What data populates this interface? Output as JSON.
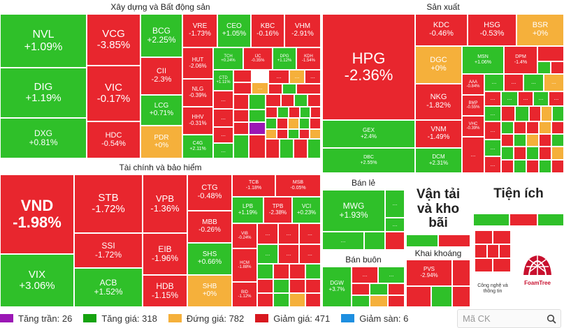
{
  "sections": {
    "xay_dung": "Xây dựng và Bất động sản",
    "san_xuat": "Sản xuất",
    "tai_chinh": "Tài chính và bảo hiểm",
    "ban_le": "Bán lẻ",
    "van_tai": "Vận tải và kho bãi",
    "tien_ich": "Tiện ích",
    "ban_buon": "Bán buôn",
    "khai_khoang": "Khai khoáng",
    "cong_nghe": "Công nghệ và thông tin"
  },
  "more": "...",
  "stocks": {
    "NVL": {
      "t": "NVL",
      "v": "+1.09%"
    },
    "DIG": {
      "t": "DIG",
      "v": "+1.19%"
    },
    "DXG": {
      "t": "DXG",
      "v": "+0.81%"
    },
    "VCG": {
      "t": "VCG",
      "v": "-3.85%"
    },
    "VIC": {
      "t": "VIC",
      "v": "-0.17%"
    },
    "HDC": {
      "t": "HDC",
      "v": "-0.54%"
    },
    "BCG": {
      "t": "BCG",
      "v": "+2.25%"
    },
    "CII": {
      "t": "CII",
      "v": "-2.3%"
    },
    "LCG": {
      "t": "LCG",
      "v": "+0.71%"
    },
    "PDR": {
      "t": "PDR",
      "v": "+0%"
    },
    "VRE": {
      "t": "VRE",
      "v": "-1.73%"
    },
    "CEO": {
      "t": "CEO",
      "v": "+1.05%"
    },
    "KBC": {
      "t": "KBC",
      "v": "-0.16%"
    },
    "VHM": {
      "t": "VHM",
      "v": "-2.91%"
    },
    "HUT": {
      "t": "HUT",
      "v": "-2.06%"
    },
    "NLG": {
      "t": "NLG",
      "v": "-0.39%"
    },
    "HHV": {
      "t": "HHV",
      "v": "-0.31%"
    },
    "C4G": {
      "t": "C4G",
      "v": "+2.11%"
    },
    "TCH": {
      "t": "TCH",
      "v": "+0.24%"
    },
    "IJC": {
      "t": "IJC",
      "v": "-0.35%"
    },
    "DPG": {
      "t": "DPG",
      "v": "+1.12%"
    },
    "KDH": {
      "t": "KDH",
      "v": "-1.54%"
    },
    "CTD": {
      "t": "CTD",
      "v": "+1.11%"
    },
    "HPG": {
      "t": "HPG",
      "v": "-2.36%"
    },
    "KDC": {
      "t": "KDC",
      "v": "-0.46%"
    },
    "HSG": {
      "t": "HSG",
      "v": "-0.53%"
    },
    "BSR": {
      "t": "BSR",
      "v": "+0%"
    },
    "DGC": {
      "t": "DGC",
      "v": "+0%"
    },
    "MSN": {
      "t": "MSN",
      "v": "+1.06%"
    },
    "DPM": {
      "t": "DPM",
      "v": "-1.4%"
    },
    "AAA": {
      "t": "AAA",
      "v": "-0.84%"
    },
    "NKG": {
      "t": "NKG",
      "v": "-1.82%"
    },
    "BMP": {
      "t": "BMP",
      "v": "-0.55%"
    },
    "VNM": {
      "t": "VNM",
      "v": "-1.49%"
    },
    "VHC": {
      "t": "VHC",
      "v": "-0.39%"
    },
    "GEX": {
      "t": "GEX",
      "v": "+2.4%"
    },
    "DBC": {
      "t": "DBC",
      "v": "+2.55%"
    },
    "DCM": {
      "t": "DCM",
      "v": "+2.31%"
    },
    "VND": {
      "t": "VND",
      "v": "-1.98%"
    },
    "VIX": {
      "t": "VIX",
      "v": "+3.06%"
    },
    "STB": {
      "t": "STB",
      "v": "-1.72%"
    },
    "SSI": {
      "t": "SSI",
      "v": "-1.72%"
    },
    "ACB": {
      "t": "ACB",
      "v": "+1.52%"
    },
    "VPB": {
      "t": "VPB",
      "v": "-1.36%"
    },
    "EIB": {
      "t": "EIB",
      "v": "-1.96%"
    },
    "HDB": {
      "t": "HDB",
      "v": "-1.15%"
    },
    "CTG": {
      "t": "CTG",
      "v": "-0.48%"
    },
    "MBB": {
      "t": "MBB",
      "v": "-0.26%"
    },
    "SHS": {
      "t": "SHS",
      "v": "+0.66%"
    },
    "SHB": {
      "t": "SHB",
      "v": "+0%"
    },
    "TCB": {
      "t": "TCB",
      "v": "-1.18%"
    },
    "MSB": {
      "t": "MSB",
      "v": "-0.05%"
    },
    "LPB": {
      "t": "LPB",
      "v": "+1.19%"
    },
    "TPB": {
      "t": "TPB",
      "v": "-2.38%"
    },
    "VCI": {
      "t": "VCI",
      "v": "+0.23%"
    },
    "VIB": {
      "t": "VIB",
      "v": "-0.24%"
    },
    "HCM": {
      "t": "HCM",
      "v": "-1.88%"
    },
    "BID": {
      "t": "BID",
      "v": "-1.12%"
    },
    "MWG": {
      "t": "MWG",
      "v": "+1.93%"
    },
    "DGW": {
      "t": "DGW",
      "v": "+3.7%"
    },
    "PVS": {
      "t": "PVS",
      "v": "-2.94%"
    }
  },
  "legend": [
    {
      "label": "Tăng trần: 26",
      "color": "#9b17b5"
    },
    {
      "label": "Tăng giá: 318",
      "color": "#16a30f"
    },
    {
      "label": "Đứng giá: 782",
      "color": "#f5b03b"
    },
    {
      "label": "Giảm giá: 471",
      "color": "#d8181f"
    },
    {
      "label": "Giảm sàn: 6",
      "color": "#1e8fe0"
    }
  ],
  "search": {
    "placeholder": "Mã CK"
  },
  "logo_text": "FoamTree"
}
